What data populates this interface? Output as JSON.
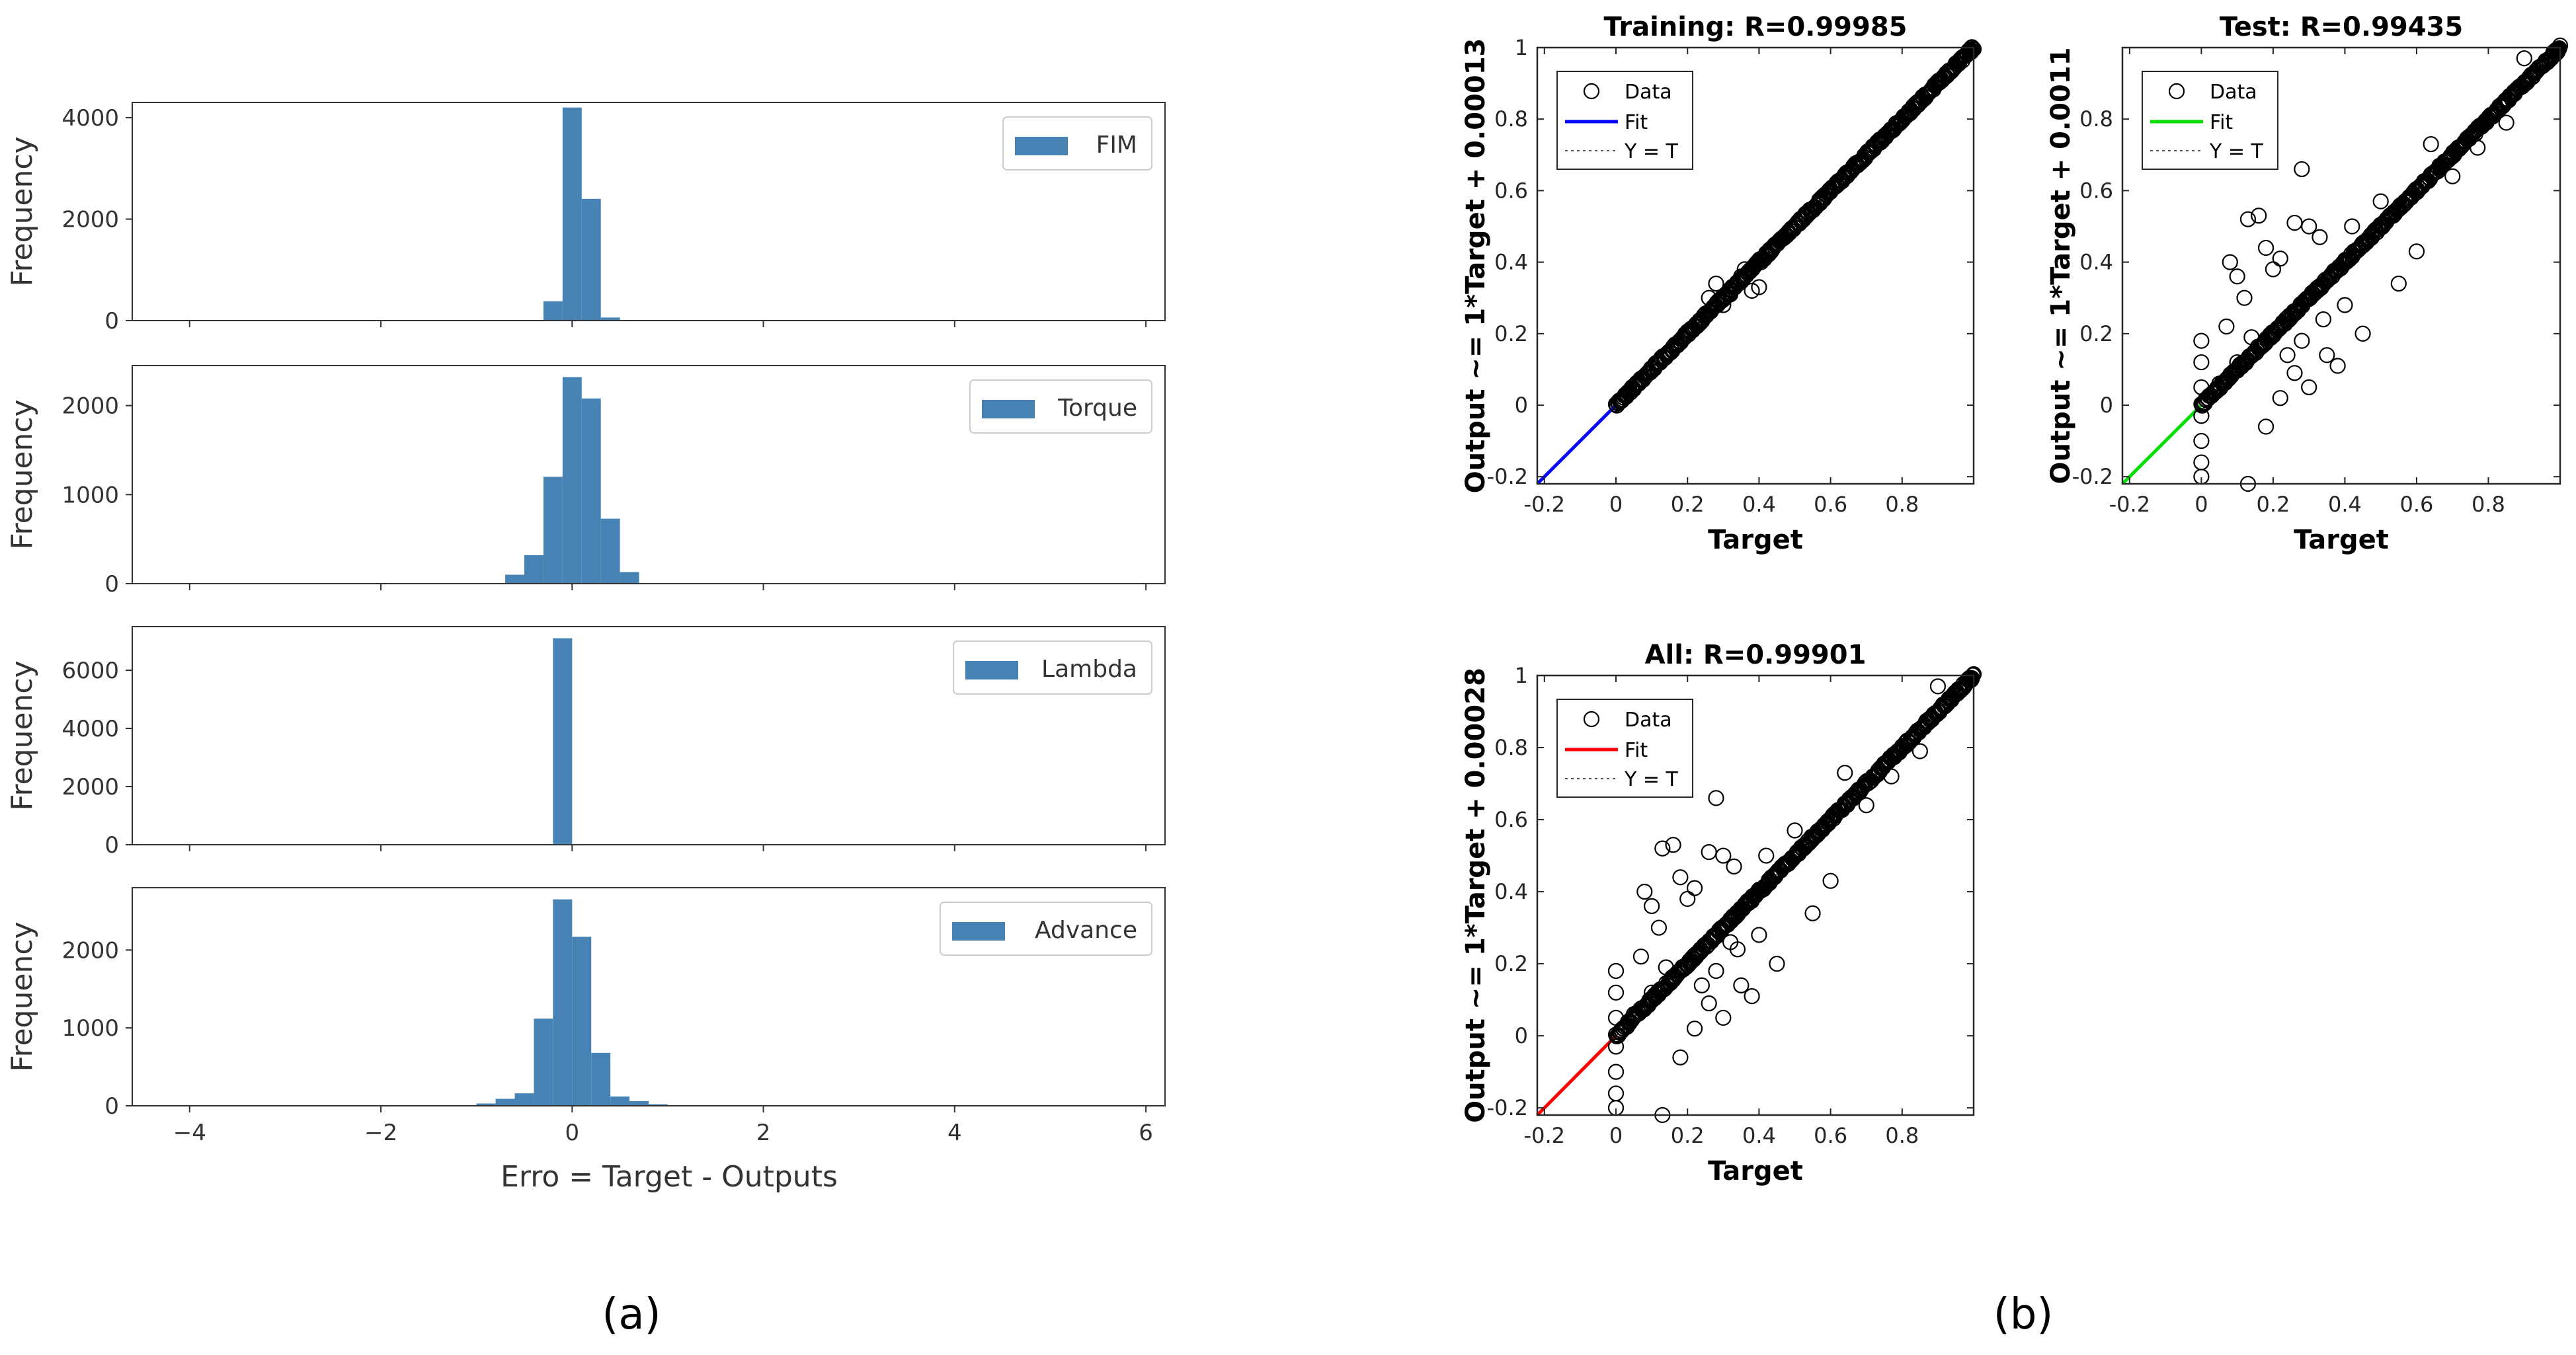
{
  "colors": {
    "bar": "#4682b4",
    "training_fit": "#0000ff",
    "test_fit": "#00e000",
    "all_fit": "#ff0000",
    "marker": "#000000"
  },
  "captions": {
    "a": "(a)",
    "b": "(b)"
  },
  "chart_data": [
    {
      "id": "hist-fim",
      "type": "bar",
      "title": "",
      "legend": "FIM",
      "xlabel": "",
      "ylabel": "Frequency",
      "xlim": [
        -4.6,
        6.2
      ],
      "ylim": [
        0,
        4300
      ],
      "yticks": [
        0,
        2000,
        4000
      ],
      "ytick_labels": [
        "0",
        "2000",
        "4000"
      ],
      "bin_width": 0.2,
      "bin_starts": [
        -0.3,
        -0.1,
        0.1,
        0.3
      ],
      "values": [
        380,
        4200,
        2400,
        60
      ]
    },
    {
      "id": "hist-torque",
      "type": "bar",
      "title": "",
      "legend": "Torque",
      "xlabel": "",
      "ylabel": "Frequency",
      "xlim": [
        -4.6,
        6.2
      ],
      "ylim": [
        0,
        2450
      ],
      "yticks": [
        0,
        1000,
        2000
      ],
      "ytick_labels": [
        "0",
        "1000",
        "2000"
      ],
      "bin_width": 0.2,
      "bin_starts": [
        -0.7,
        -0.5,
        -0.3,
        -0.1,
        0.1,
        0.3,
        0.5
      ],
      "values": [
        100,
        320,
        1200,
        2320,
        2080,
        730,
        130
      ]
    },
    {
      "id": "hist-lambda",
      "type": "bar",
      "title": "",
      "legend": "Lambda",
      "xlabel": "",
      "ylabel": "Frequency",
      "xlim": [
        -4.6,
        6.2
      ],
      "ylim": [
        0,
        7500
      ],
      "yticks": [
        0,
        2000,
        4000,
        6000
      ],
      "ytick_labels": [
        "0",
        "2000",
        "4000",
        "6000"
      ],
      "bin_width": 0.2,
      "bin_starts": [
        -0.2
      ],
      "values": [
        7100
      ]
    },
    {
      "id": "hist-advance",
      "type": "bar",
      "title": "",
      "legend": "Advance",
      "xlabel": "Erro = Target - Outputs",
      "ylabel": "Frequency",
      "xlim": [
        -4.6,
        6.2
      ],
      "ylim": [
        0,
        2800
      ],
      "yticks": [
        0,
        1000,
        2000
      ],
      "ytick_labels": [
        "0",
        "1000",
        "2000"
      ],
      "xticks": [
        -4,
        -2,
        0,
        2,
        4,
        6
      ],
      "xtick_labels": [
        "−4",
        "−2",
        "0",
        "2",
        "4",
        "6"
      ],
      "bin_width": 0.2,
      "bin_starts": [
        -1.0,
        -0.8,
        -0.6,
        -0.4,
        -0.2,
        0.0,
        0.2,
        0.4,
        0.6,
        0.8
      ],
      "values": [
        30,
        90,
        160,
        1120,
        2650,
        2170,
        680,
        120,
        60,
        20
      ]
    },
    {
      "id": "reg-training",
      "type": "scatter",
      "title": "Training: R=0.99985",
      "xlabel": "Target",
      "ylabel": "Output ~= 1*Target + 0.00013",
      "xlim": [
        -0.22,
        1.0
      ],
      "ylim": [
        -0.22,
        1.0
      ],
      "xticks": [
        -0.2,
        0,
        0.2,
        0.4,
        0.6,
        0.8
      ],
      "xtick_labels": [
        "-0.2",
        "0",
        "0.2",
        "0.4",
        "0.6",
        "0.8"
      ],
      "yticks": [
        -0.2,
        0,
        0.2,
        0.4,
        0.6,
        0.8,
        1
      ],
      "ytick_labels": [
        "-0.2",
        "0",
        "0.2",
        "0.4",
        "0.6",
        "0.8",
        "1"
      ],
      "legend": [
        "Data",
        "Fit",
        "Y = T"
      ],
      "fit": {
        "slope": 1,
        "intercept": 0.00013
      },
      "outliers": [
        [
          0.28,
          0.34
        ],
        [
          0.32,
          0.31
        ],
        [
          0.35,
          0.36
        ],
        [
          0.38,
          0.32
        ],
        [
          0.3,
          0.28
        ],
        [
          0.26,
          0.3
        ],
        [
          0.36,
          0.38
        ],
        [
          0.4,
          0.33
        ]
      ]
    },
    {
      "id": "reg-test",
      "type": "scatter",
      "title": "Test: R=0.99435",
      "xlabel": "Target",
      "ylabel": "Output ~= 1*Target + 0.0011",
      "xlim": [
        -0.22,
        1.0
      ],
      "ylim": [
        -0.22,
        1.0
      ],
      "xticks": [
        -0.2,
        0,
        0.2,
        0.4,
        0.6,
        0.8
      ],
      "xtick_labels": [
        "-0.2",
        "0",
        "0.2",
        "0.4",
        "0.6",
        "0.8"
      ],
      "yticks": [
        -0.2,
        0,
        0.2,
        0.4,
        0.6,
        0.8
      ],
      "ytick_labels": [
        "-0.2",
        "0",
        "0.2",
        "0.4",
        "0.6",
        "0.8"
      ],
      "legend": [
        "Data",
        "Fit",
        "Y = T"
      ],
      "fit": {
        "slope": 1,
        "intercept": 0.0011
      },
      "outliers": [
        [
          0.13,
          0.52
        ],
        [
          0.16,
          0.53
        ],
        [
          0.08,
          0.4
        ],
        [
          0.1,
          0.36
        ],
        [
          0.2,
          0.38
        ],
        [
          0.28,
          0.66
        ],
        [
          0.26,
          0.51
        ],
        [
          0.3,
          0.5
        ],
        [
          0.18,
          0.44
        ],
        [
          0.22,
          0.41
        ],
        [
          0.33,
          0.47
        ],
        [
          0.12,
          0.3
        ],
        [
          0.07,
          0.22
        ],
        [
          0.1,
          0.12
        ],
        [
          0.14,
          0.19
        ],
        [
          0.0,
          -0.03
        ],
        [
          0.0,
          -0.1
        ],
        [
          0.0,
          -0.16
        ],
        [
          0.0,
          0.05
        ],
        [
          0.0,
          0.12
        ],
        [
          0.0,
          0.18
        ],
        [
          0.05,
          0.06
        ],
        [
          0.13,
          -0.22
        ],
        [
          0.0,
          -0.2
        ],
        [
          0.18,
          -0.06
        ],
        [
          0.22,
          0.02
        ],
        [
          0.3,
          0.05
        ],
        [
          0.35,
          0.14
        ],
        [
          0.38,
          0.11
        ],
        [
          0.26,
          0.09
        ],
        [
          0.45,
          0.2
        ],
        [
          0.55,
          0.34
        ],
        [
          0.6,
          0.43
        ],
        [
          0.7,
          0.64
        ],
        [
          0.77,
          0.72
        ],
        [
          0.85,
          0.79
        ],
        [
          0.9,
          0.97
        ],
        [
          0.64,
          0.73
        ],
        [
          0.5,
          0.57
        ],
        [
          0.42,
          0.5
        ],
        [
          0.28,
          0.18
        ],
        [
          0.24,
          0.14
        ],
        [
          0.2,
          0.2
        ],
        [
          0.16,
          0.16
        ],
        [
          0.34,
          0.24
        ],
        [
          0.4,
          0.28
        ]
      ]
    },
    {
      "id": "reg-all",
      "type": "scatter",
      "title": "All: R=0.99901",
      "xlabel": "Target",
      "ylabel": "Output ~= 1*Target + 0.00028",
      "xlim": [
        -0.22,
        1.0
      ],
      "ylim": [
        -0.22,
        1.0
      ],
      "xticks": [
        -0.2,
        0,
        0.2,
        0.4,
        0.6,
        0.8
      ],
      "xtick_labels": [
        "-0.2",
        "0",
        "0.2",
        "0.4",
        "0.6",
        "0.8"
      ],
      "yticks": [
        -0.2,
        0,
        0.2,
        0.4,
        0.6,
        0.8,
        1
      ],
      "ytick_labels": [
        "-0.2",
        "0",
        "0.2",
        "0.4",
        "0.6",
        "0.8",
        "1"
      ],
      "legend": [
        "Data",
        "Fit",
        "Y = T"
      ],
      "fit": {
        "slope": 1,
        "intercept": 0.00028
      },
      "outliers": [
        [
          0.13,
          0.52
        ],
        [
          0.16,
          0.53
        ],
        [
          0.08,
          0.4
        ],
        [
          0.1,
          0.36
        ],
        [
          0.2,
          0.38
        ],
        [
          0.28,
          0.66
        ],
        [
          0.26,
          0.51
        ],
        [
          0.3,
          0.5
        ],
        [
          0.18,
          0.44
        ],
        [
          0.22,
          0.41
        ],
        [
          0.33,
          0.47
        ],
        [
          0.12,
          0.3
        ],
        [
          0.07,
          0.22
        ],
        [
          0.1,
          0.12
        ],
        [
          0.14,
          0.19
        ],
        [
          0.0,
          -0.03
        ],
        [
          0.0,
          -0.1
        ],
        [
          0.0,
          -0.16
        ],
        [
          0.0,
          0.05
        ],
        [
          0.0,
          0.12
        ],
        [
          0.0,
          0.18
        ],
        [
          0.05,
          0.06
        ],
        [
          0.13,
          -0.22
        ],
        [
          0.0,
          -0.2
        ],
        [
          0.18,
          -0.06
        ],
        [
          0.22,
          0.02
        ],
        [
          0.3,
          0.05
        ],
        [
          0.35,
          0.14
        ],
        [
          0.38,
          0.11
        ],
        [
          0.26,
          0.09
        ],
        [
          0.45,
          0.2
        ],
        [
          0.55,
          0.34
        ],
        [
          0.6,
          0.43
        ],
        [
          0.7,
          0.64
        ],
        [
          0.77,
          0.72
        ],
        [
          0.85,
          0.79
        ],
        [
          0.9,
          0.97
        ],
        [
          0.64,
          0.73
        ],
        [
          0.5,
          0.57
        ],
        [
          0.42,
          0.5
        ],
        [
          0.28,
          0.18
        ],
        [
          0.24,
          0.14
        ],
        [
          0.2,
          0.2
        ],
        [
          0.16,
          0.16
        ],
        [
          0.34,
          0.24
        ],
        [
          0.4,
          0.28
        ],
        [
          0.3,
          0.3
        ],
        [
          0.32,
          0.26
        ]
      ]
    }
  ]
}
